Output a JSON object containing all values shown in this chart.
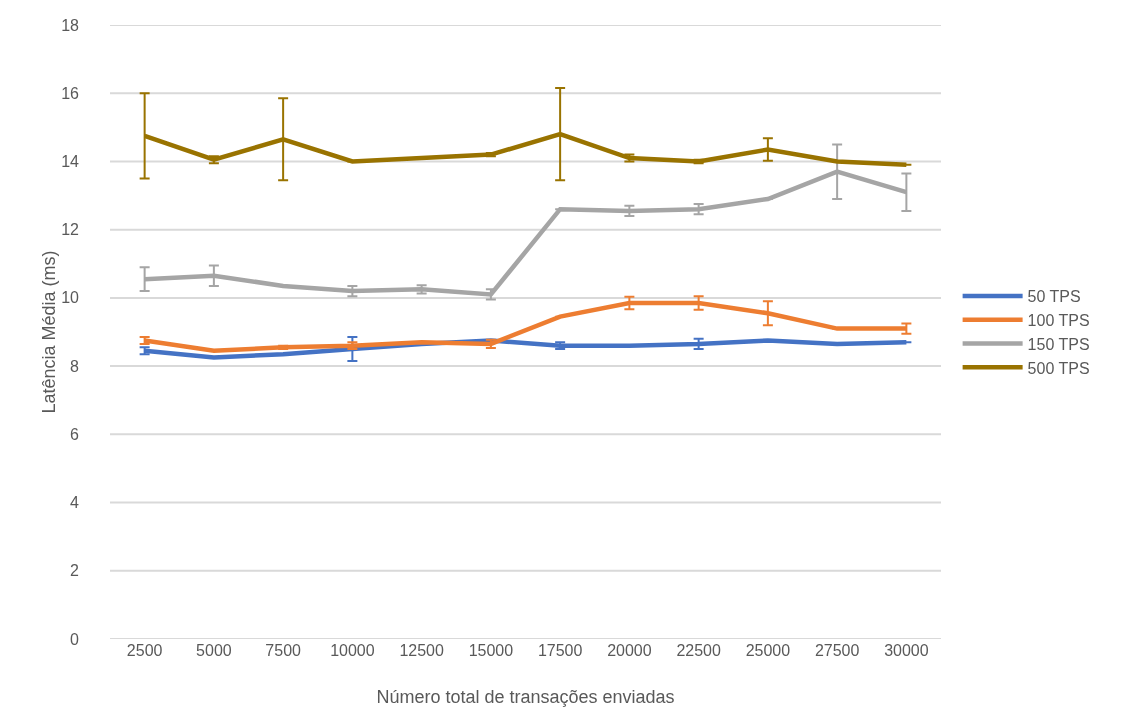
{
  "chart_data": {
    "type": "line",
    "xlabel": "Número total de transações enviadas",
    "ylabel": "Latência Média (ms)",
    "categories": [
      "2500",
      "5000",
      "7500",
      "10000",
      "12500",
      "15000",
      "17500",
      "20000",
      "22500",
      "25000",
      "27500",
      "30000"
    ],
    "series": [
      {
        "name": "50 TPS",
        "color": "#4472c4",
        "values": [
          8.45,
          8.25,
          8.35,
          8.5,
          8.65,
          8.75,
          8.6,
          8.6,
          8.65,
          8.75,
          8.65,
          8.7
        ],
        "errors": [
          0.1,
          null,
          null,
          0.35,
          null,
          null,
          0.1,
          null,
          0.15,
          null,
          null,
          null
        ]
      },
      {
        "name": "100 TPS",
        "color": "#ed7d31",
        "values": [
          8.75,
          8.45,
          8.55,
          8.6,
          8.7,
          8.65,
          9.45,
          9.85,
          9.85,
          9.55,
          9.1,
          9.1
        ],
        "errors": [
          0.1,
          null,
          0.05,
          0.1,
          null,
          0.12,
          null,
          0.18,
          0.2,
          0.35,
          null,
          0.15
        ]
      },
      {
        "name": "150 TPS",
        "color": "#a5a5a5",
        "values": [
          10.55,
          10.65,
          10.35,
          10.2,
          10.25,
          10.1,
          12.6,
          12.55,
          12.6,
          12.9,
          13.7,
          13.1
        ],
        "errors": [
          0.35,
          0.3,
          null,
          0.15,
          0.12,
          0.15,
          null,
          0.15,
          0.15,
          null,
          0.8,
          0.55
        ]
      },
      {
        "name": "500 TPS",
        "color": "#997300",
        "values": [
          14.75,
          14.05,
          14.65,
          14.0,
          14.1,
          14.2,
          14.8,
          14.1,
          14.0,
          14.35,
          14.0,
          13.9
        ],
        "errors": [
          1.25,
          0.1,
          1.2,
          null,
          null,
          0.05,
          1.35,
          0.1,
          0.05,
          0.33,
          null,
          null
        ]
      }
    ],
    "ylim": [
      0,
      18
    ],
    "yticks": [
      0,
      2,
      4,
      6,
      8,
      10,
      12,
      14,
      16,
      18
    ],
    "grid": "y",
    "legend": "right",
    "line_style": "solid"
  }
}
